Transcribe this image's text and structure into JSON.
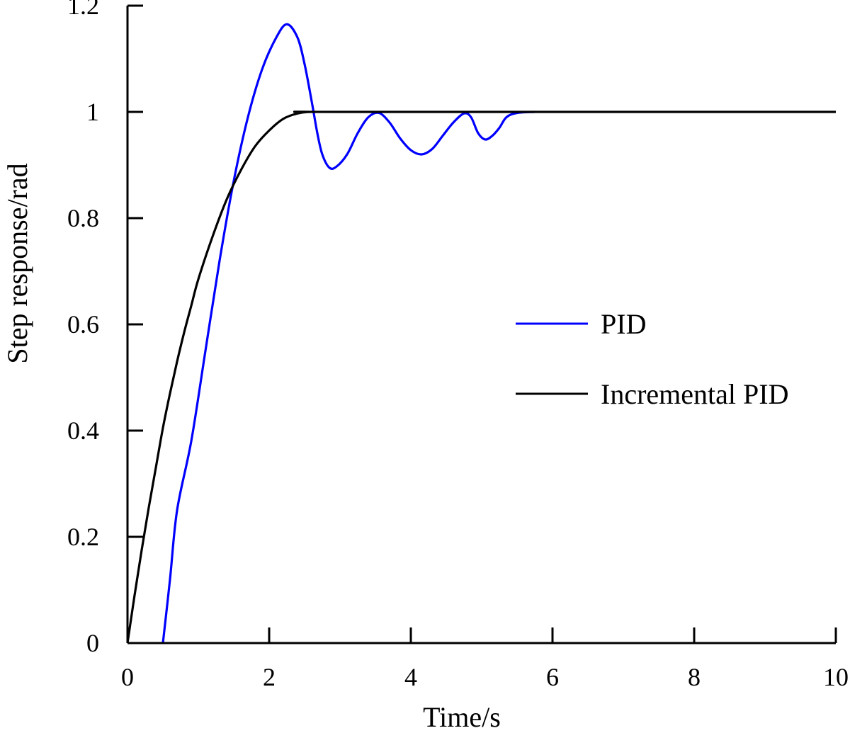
{
  "chart_data": {
    "type": "line",
    "xlabel": "Time/s",
    "ylabel": "Step response/rad",
    "xlim": [
      0,
      10
    ],
    "ylim": [
      0,
      1.2
    ],
    "xticks": [
      "0",
      "2",
      "4",
      "6",
      "8",
      "10"
    ],
    "yticks": [
      "0",
      "0.2",
      "0.4",
      "0.6",
      "0.8",
      "1",
      "1.2"
    ],
    "grid": false,
    "legend_position": "center-right",
    "series": [
      {
        "name": "PID",
        "color": "#0000ff",
        "points": [
          [
            0.5,
            0.0
          ],
          [
            0.6,
            0.12
          ],
          [
            0.7,
            0.25
          ],
          [
            0.9,
            0.38
          ],
          [
            1.1,
            0.55
          ],
          [
            1.3,
            0.72
          ],
          [
            1.5,
            0.87
          ],
          [
            1.7,
            0.99
          ],
          [
            1.9,
            1.08
          ],
          [
            2.1,
            1.14
          ],
          [
            2.25,
            1.165
          ],
          [
            2.4,
            1.14
          ],
          [
            2.5,
            1.09
          ],
          [
            2.6,
            1.02
          ],
          [
            2.68,
            0.96
          ],
          [
            2.75,
            0.92
          ],
          [
            2.85,
            0.895
          ],
          [
            2.95,
            0.897
          ],
          [
            3.1,
            0.92
          ],
          [
            3.25,
            0.96
          ],
          [
            3.4,
            0.99
          ],
          [
            3.55,
            0.998
          ],
          [
            3.7,
            0.98
          ],
          [
            3.85,
            0.95
          ],
          [
            4.0,
            0.928
          ],
          [
            4.15,
            0.92
          ],
          [
            4.3,
            0.93
          ],
          [
            4.45,
            0.955
          ],
          [
            4.6,
            0.98
          ],
          [
            4.75,
            0.997
          ],
          [
            4.85,
            0.99
          ],
          [
            4.95,
            0.96
          ],
          [
            5.05,
            0.948
          ],
          [
            5.15,
            0.955
          ],
          [
            5.25,
            0.97
          ],
          [
            5.35,
            0.99
          ],
          [
            5.5,
            0.998
          ],
          [
            5.75,
            1.0
          ]
        ]
      },
      {
        "name": "Incremental PID",
        "color": "#000000",
        "points": [
          [
            0.0,
            0.0
          ],
          [
            0.1,
            0.09
          ],
          [
            0.2,
            0.175
          ],
          [
            0.3,
            0.255
          ],
          [
            0.4,
            0.33
          ],
          [
            0.5,
            0.405
          ],
          [
            0.6,
            0.47
          ],
          [
            0.7,
            0.53
          ],
          [
            0.8,
            0.585
          ],
          [
            0.9,
            0.635
          ],
          [
            1.0,
            0.685
          ],
          [
            1.2,
            0.765
          ],
          [
            1.4,
            0.835
          ],
          [
            1.6,
            0.89
          ],
          [
            1.8,
            0.935
          ],
          [
            2.0,
            0.965
          ],
          [
            2.2,
            0.987
          ],
          [
            2.4,
            0.997
          ],
          [
            2.6,
            1.0
          ],
          [
            3.0,
            1.0
          ],
          [
            10.0,
            1.0
          ]
        ]
      }
    ]
  }
}
